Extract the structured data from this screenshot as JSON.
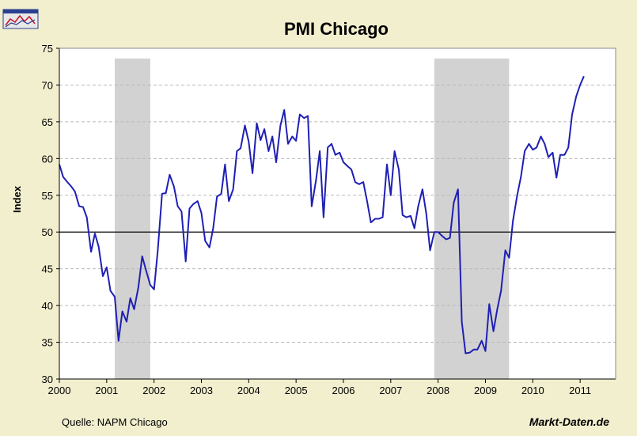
{
  "chart_data": {
    "type": "line",
    "title": "PMI Chicago",
    "xlabel": "",
    "ylabel": "Index",
    "xlim": [
      2000,
      2011.75
    ],
    "ylim": [
      30,
      75
    ],
    "yticks": [
      30,
      35,
      40,
      45,
      50,
      55,
      60,
      65,
      70,
      75
    ],
    "xticks": [
      "2000",
      "2001",
      "2002",
      "2003",
      "2004",
      "2005",
      "2006",
      "2007",
      "2008",
      "2009",
      "2010",
      "2011"
    ],
    "reference_line": 50,
    "recession_periods": [
      [
        2001.17,
        2001.92
      ],
      [
        2007.92,
        2009.5
      ]
    ],
    "grid": "horizontal-dashed",
    "series": [
      {
        "name": "PMI Chicago",
        "color": "#1f1fb4",
        "x": [
          2000.0,
          2000.08,
          2000.17,
          2000.25,
          2000.33,
          2000.42,
          2000.5,
          2000.58,
          2000.67,
          2000.75,
          2000.83,
          2000.92,
          2001.0,
          2001.08,
          2001.17,
          2001.25,
          2001.33,
          2001.42,
          2001.5,
          2001.58,
          2001.67,
          2001.75,
          2001.83,
          2001.92,
          2002.0,
          2002.08,
          2002.17,
          2002.25,
          2002.33,
          2002.42,
          2002.5,
          2002.58,
          2002.67,
          2002.75,
          2002.83,
          2002.92,
          2003.0,
          2003.08,
          2003.17,
          2003.25,
          2003.33,
          2003.42,
          2003.5,
          2003.58,
          2003.67,
          2003.75,
          2003.83,
          2003.92,
          2004.0,
          2004.08,
          2004.17,
          2004.25,
          2004.33,
          2004.42,
          2004.5,
          2004.58,
          2004.67,
          2004.75,
          2004.83,
          2004.92,
          2005.0,
          2005.08,
          2005.17,
          2005.25,
          2005.33,
          2005.42,
          2005.5,
          2005.58,
          2005.67,
          2005.75,
          2005.83,
          2005.92,
          2006.0,
          2006.08,
          2006.17,
          2006.25,
          2006.33,
          2006.42,
          2006.5,
          2006.58,
          2006.67,
          2006.75,
          2006.83,
          2006.92,
          2007.0,
          2007.08,
          2007.17,
          2007.25,
          2007.33,
          2007.42,
          2007.5,
          2007.58,
          2007.67,
          2007.75,
          2007.83,
          2007.92,
          2008.0,
          2008.08,
          2008.17,
          2008.25,
          2008.33,
          2008.42,
          2008.5,
          2008.58,
          2008.67,
          2008.75,
          2008.83,
          2008.92,
          2009.0,
          2009.08,
          2009.17,
          2009.25,
          2009.33,
          2009.42,
          2009.5,
          2009.58,
          2009.67,
          2009.75,
          2009.83,
          2009.92,
          2010.0,
          2010.08,
          2010.17,
          2010.25,
          2010.33,
          2010.42,
          2010.5,
          2010.58,
          2010.67,
          2010.75,
          2010.83,
          2010.92,
          2011.0,
          2011.08
        ],
        "values": [
          59.2,
          57.5,
          56.8,
          56.2,
          55.5,
          53.5,
          53.4,
          52.0,
          47.3,
          49.8,
          48.0,
          44.0,
          45.2,
          42.0,
          41.2,
          35.2,
          39.2,
          37.8,
          41.0,
          39.5,
          42.5,
          46.7,
          44.8,
          42.8,
          42.2,
          47.5,
          55.2,
          55.3,
          57.8,
          56.2,
          53.5,
          52.8,
          46.0,
          53.2,
          53.8,
          54.2,
          52.6,
          48.8,
          47.9,
          50.5,
          54.8,
          55.2,
          59.2,
          54.2,
          55.8,
          61.0,
          61.4,
          64.5,
          62.3,
          58.0,
          64.8,
          62.5,
          64.0,
          61.0,
          63.0,
          59.5,
          64.5,
          66.6,
          62.0,
          63.0,
          62.4,
          66.0,
          65.5,
          65.8,
          53.5,
          57.0,
          61.0,
          52.0,
          61.5,
          62.0,
          60.5,
          60.8,
          59.5,
          59.0,
          58.5,
          56.8,
          56.5,
          56.8,
          54.2,
          51.3,
          51.8,
          51.8,
          52.0,
          59.2,
          55.0,
          61.0,
          58.5,
          52.3,
          52.0,
          52.2,
          50.5,
          53.5,
          55.8,
          52.5,
          47.5,
          50.0,
          50.0,
          49.5,
          49.0,
          49.2,
          54.0,
          55.8,
          37.8,
          33.5,
          33.6,
          34.0,
          34.0,
          35.2,
          33.8,
          40.2,
          36.5,
          39.5,
          42.0,
          47.5,
          46.5,
          51.5,
          55.0,
          57.5,
          61.0,
          62.0,
          61.2,
          61.5,
          63.0,
          62.0,
          60.2,
          60.8,
          57.4,
          60.5,
          60.5,
          61.5,
          66.0,
          68.5,
          70.0,
          71.2
        ]
      }
    ]
  },
  "source": "Quelle: NAPM Chicago",
  "brand": "Markt-Daten.de",
  "colors": {
    "background": "#f2efcf",
    "plot_area": "#ffffff",
    "recession_fill": "#d2d2d2",
    "line": "#1f1fb4",
    "grid": "#b9b9b9"
  },
  "logo": {
    "icon": "chart-logo-icon"
  }
}
